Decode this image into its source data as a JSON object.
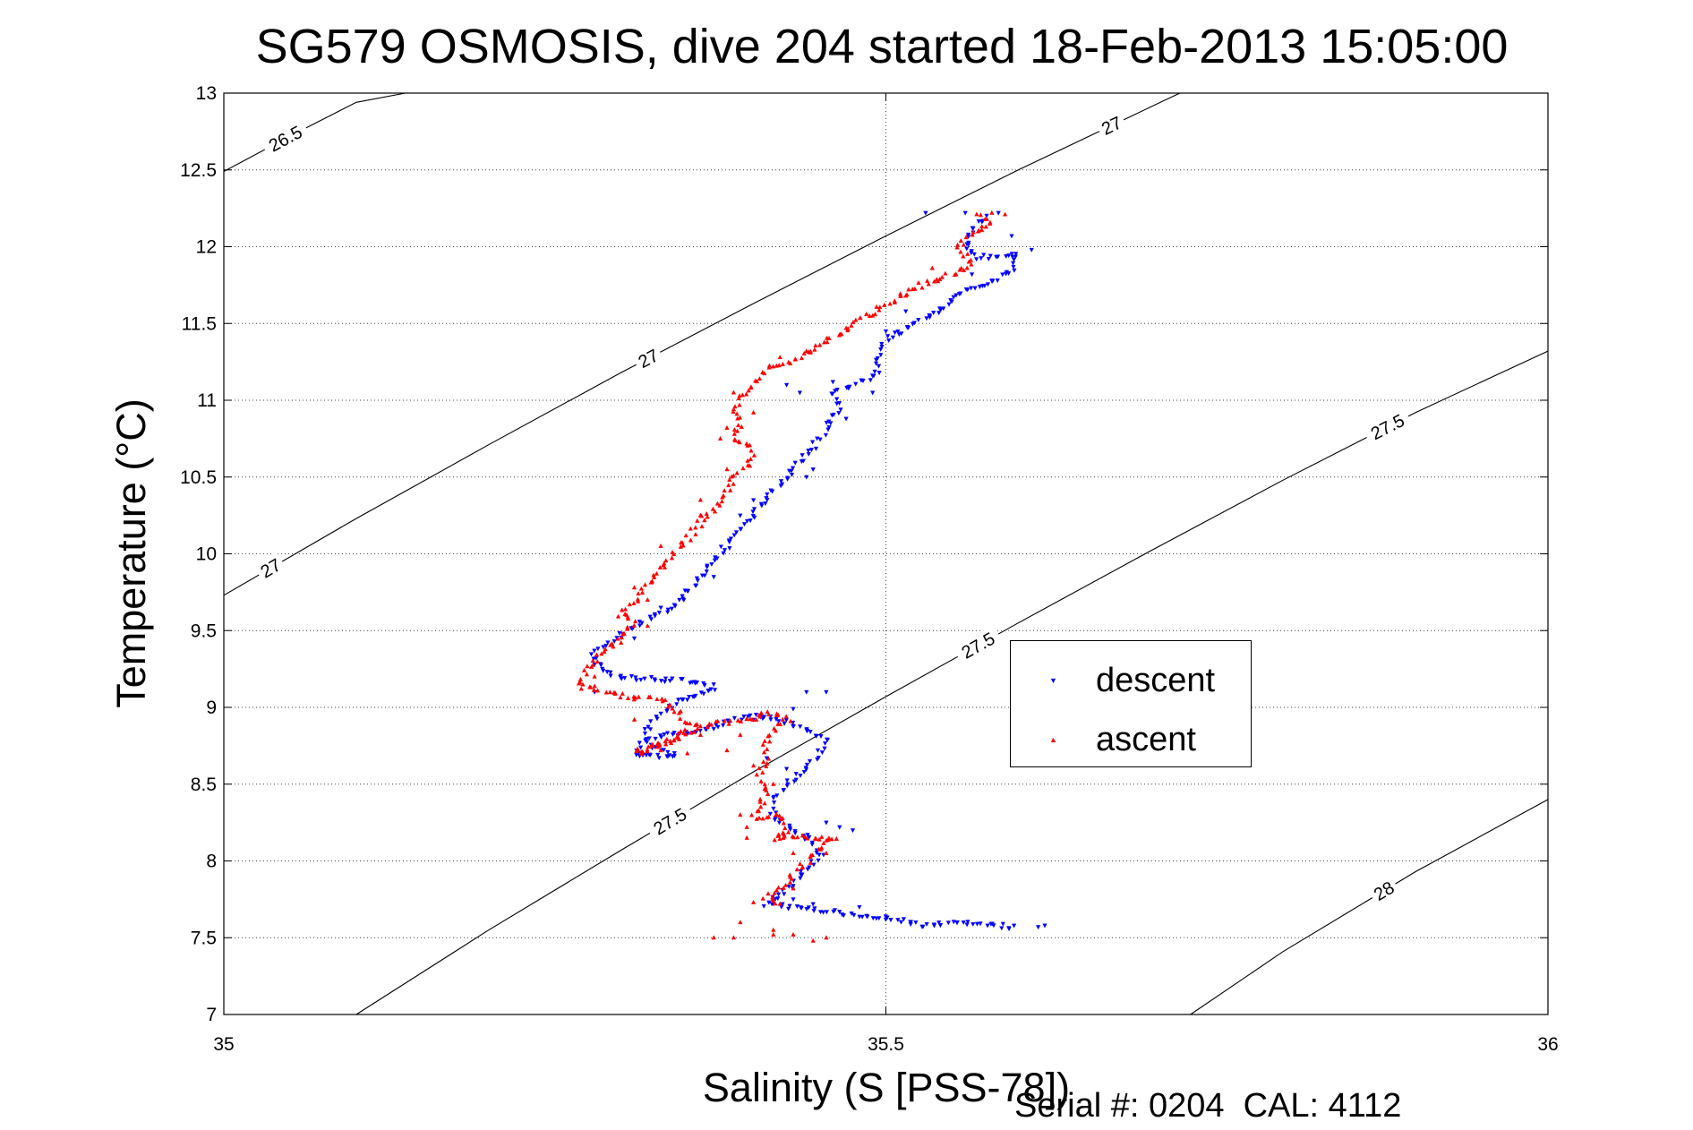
{
  "title": "SG579 OSMOSIS, dive 204 started 18-Feb-2013 15:05:00",
  "footer": "Serial #: 0204  CAL: 4112",
  "chart_data": {
    "type": "scatter",
    "title": "SG579 OSMOSIS, dive 204 started 18-Feb-2013 15:05:00",
    "xlabel": "Salinity (S [PSS-78])",
    "ylabel": "Temperature (°C)",
    "xlim": [
      35,
      36
    ],
    "ylim": [
      7,
      13
    ],
    "xticks": [
      35,
      35.5,
      36
    ],
    "xtick_labels": [
      "35",
      "35.5",
      "36"
    ],
    "yticks": [
      7,
      7.5,
      8,
      8.5,
      9,
      9.5,
      10,
      10.5,
      11,
      11.5,
      12,
      12.5,
      13
    ],
    "ytick_labels": [
      "7",
      "7.5",
      "8",
      "8.5",
      "9",
      "9.5",
      "10",
      "10.5",
      "11",
      "11.5",
      "12",
      "12.5",
      "13"
    ],
    "grid": "dotted",
    "legend": {
      "position": "center-right",
      "entries": [
        "descent",
        "ascent"
      ]
    },
    "colors": {
      "descent": "#0000ff",
      "ascent": "#ff0000",
      "contour": "#000000"
    },
    "density_contours": [
      {
        "label": "26.5",
        "points": [
          [
            35.0,
            12.49
          ],
          [
            35.05,
            12.72
          ],
          [
            35.1,
            12.94
          ],
          [
            35.137,
            13.0
          ]
        ]
      },
      {
        "label": "27",
        "points": [
          [
            35.0,
            9.73
          ],
          [
            35.1,
            10.23
          ],
          [
            35.2,
            10.71
          ],
          [
            35.3,
            11.18
          ],
          [
            35.4,
            11.63
          ],
          [
            35.5,
            12.07
          ],
          [
            35.6,
            12.5
          ],
          [
            35.7,
            12.91
          ],
          [
            35.722,
            13.0
          ]
        ]
      },
      {
        "label": "27.5",
        "points": [
          [
            35.1,
            7.0
          ],
          [
            35.2,
            7.55
          ],
          [
            35.3,
            8.07
          ],
          [
            35.4,
            8.58
          ],
          [
            35.5,
            9.07
          ],
          [
            35.6,
            9.55
          ],
          [
            35.7,
            10.02
          ],
          [
            35.8,
            10.48
          ],
          [
            35.9,
            10.92
          ],
          [
            36.0,
            11.32
          ]
        ]
      },
      {
        "label": "28",
        "points": [
          [
            35.73,
            7.0
          ],
          [
            35.8,
            7.41
          ],
          [
            35.9,
            7.93
          ],
          [
            36.0,
            8.4
          ]
        ]
      }
    ],
    "series": [
      {
        "name": "descent",
        "marker": "▼",
        "color": "#0000ff",
        "path": [
          [
            35.575,
            12.2
          ],
          [
            35.565,
            12.1
          ],
          [
            35.56,
            12.0
          ],
          [
            35.57,
            11.93
          ],
          [
            35.6,
            11.95
          ],
          [
            35.595,
            11.85
          ],
          [
            35.575,
            11.75
          ],
          [
            35.555,
            11.7
          ],
          [
            35.545,
            11.6
          ],
          [
            35.5,
            11.4
          ],
          [
            35.49,
            11.15
          ],
          [
            35.475,
            11.1
          ],
          [
            35.46,
            11.05
          ],
          [
            35.465,
            10.95
          ],
          [
            35.455,
            10.82
          ],
          [
            35.445,
            10.7
          ],
          [
            35.435,
            10.6
          ],
          [
            35.425,
            10.5
          ],
          [
            35.415,
            10.4
          ],
          [
            35.405,
            10.3
          ],
          [
            35.395,
            10.2
          ],
          [
            35.385,
            10.1
          ],
          [
            35.375,
            10.0
          ],
          [
            35.365,
            9.9
          ],
          [
            35.355,
            9.8
          ],
          [
            35.345,
            9.7
          ],
          [
            35.33,
            9.62
          ],
          [
            35.315,
            9.55
          ],
          [
            35.3,
            9.48
          ],
          [
            35.29,
            9.4
          ],
          [
            35.28,
            9.35
          ],
          [
            35.285,
            9.25
          ],
          [
            35.3,
            9.2
          ],
          [
            35.33,
            9.18
          ],
          [
            35.36,
            9.17
          ],
          [
            35.37,
            9.12
          ],
          [
            35.345,
            9.05
          ],
          [
            35.33,
            8.95
          ],
          [
            35.32,
            8.85
          ],
          [
            35.32,
            8.78
          ],
          [
            35.33,
            8.72
          ],
          [
            35.34,
            8.68
          ],
          [
            35.31,
            8.68
          ],
          [
            35.32,
            8.8
          ],
          [
            35.36,
            8.85
          ],
          [
            35.4,
            8.95
          ],
          [
            35.42,
            8.92
          ],
          [
            35.44,
            8.85
          ],
          [
            35.455,
            8.8
          ],
          [
            35.45,
            8.7
          ],
          [
            35.44,
            8.6
          ],
          [
            35.425,
            8.5
          ],
          [
            35.415,
            8.4
          ],
          [
            35.415,
            8.28
          ],
          [
            35.43,
            8.22
          ],
          [
            35.44,
            8.15
          ],
          [
            35.45,
            8.05
          ],
          [
            35.44,
            7.95
          ],
          [
            35.43,
            7.85
          ],
          [
            35.42,
            7.78
          ],
          [
            35.41,
            7.72
          ],
          [
            35.505,
            7.62
          ],
          [
            35.53,
            7.58
          ],
          [
            35.56,
            7.6
          ],
          [
            35.58,
            7.58
          ],
          [
            35.6,
            7.57
          ]
        ],
        "scatter": [
          [
            35.53,
            12.22
          ],
          [
            35.56,
            12.22
          ],
          [
            35.585,
            12.22
          ],
          [
            35.595,
            12.07
          ],
          [
            35.61,
            11.98
          ],
          [
            35.58,
            11.78
          ],
          [
            35.54,
            11.57
          ],
          [
            35.51,
            11.43
          ],
          [
            35.515,
            11.58
          ],
          [
            35.565,
            11.82
          ],
          [
            35.49,
            11.05
          ],
          [
            35.47,
            10.88
          ],
          [
            35.445,
            10.55
          ],
          [
            35.4,
            10.35
          ],
          [
            35.37,
            9.85
          ],
          [
            35.35,
            9.76
          ],
          [
            35.33,
            9.65
          ],
          [
            35.28,
            9.28
          ],
          [
            35.28,
            9.1
          ],
          [
            35.37,
            9.15
          ],
          [
            35.35,
            9.05
          ],
          [
            35.37,
            8.86
          ],
          [
            35.4,
            8.92
          ],
          [
            35.44,
            9.1
          ],
          [
            35.455,
            9.1
          ],
          [
            35.43,
            8.99
          ],
          [
            35.41,
            8.67
          ],
          [
            35.425,
            8.6
          ],
          [
            35.455,
            8.25
          ],
          [
            35.465,
            8.22
          ],
          [
            35.475,
            8.2
          ],
          [
            35.445,
            7.72
          ],
          [
            35.43,
            7.75
          ],
          [
            35.48,
            7.7
          ],
          [
            35.54,
            7.6
          ],
          [
            35.62,
            7.58
          ],
          [
            35.615,
            7.57
          ],
          [
            35.495,
            11.18
          ],
          [
            35.5,
            11.45
          ],
          [
            35.46,
            11.12
          ],
          [
            35.425,
            11.1
          ],
          [
            35.435,
            11.05
          ],
          [
            35.44,
            10.5
          ],
          [
            35.39,
            10.25
          ],
          [
            35.31,
            9.45
          ]
        ]
      },
      {
        "name": "ascent",
        "marker": "▲",
        "color": "#ff0000",
        "path": [
          [
            35.57,
            12.22
          ],
          [
            35.58,
            12.15
          ],
          [
            35.565,
            12.08
          ],
          [
            35.555,
            12.0
          ],
          [
            35.56,
            11.95
          ],
          [
            35.565,
            11.88
          ],
          [
            35.55,
            11.82
          ],
          [
            35.535,
            11.78
          ],
          [
            35.52,
            11.72
          ],
          [
            35.5,
            11.62
          ],
          [
            35.485,
            11.55
          ],
          [
            35.47,
            11.45
          ],
          [
            35.455,
            11.38
          ],
          [
            35.44,
            11.3
          ],
          [
            35.425,
            11.25
          ],
          [
            35.41,
            11.2
          ],
          [
            35.4,
            11.1
          ],
          [
            35.39,
            11.0
          ],
          [
            35.385,
            10.92
          ],
          [
            35.39,
            10.85
          ],
          [
            35.385,
            10.75
          ],
          [
            35.4,
            10.7
          ],
          [
            35.395,
            10.58
          ],
          [
            35.385,
            10.5
          ],
          [
            35.38,
            10.4
          ],
          [
            35.37,
            10.3
          ],
          [
            35.36,
            10.2
          ],
          [
            35.35,
            10.1
          ],
          [
            35.34,
            10.0
          ],
          [
            35.33,
            9.9
          ],
          [
            35.32,
            9.8
          ],
          [
            35.31,
            9.7
          ],
          [
            35.3,
            9.6
          ],
          [
            35.31,
            9.55
          ],
          [
            35.3,
            9.45
          ],
          [
            35.285,
            9.35
          ],
          [
            35.275,
            9.25
          ],
          [
            35.27,
            9.15
          ],
          [
            35.29,
            9.1
          ],
          [
            35.31,
            9.05
          ],
          [
            35.33,
            9.06
          ],
          [
            35.34,
            9.0
          ],
          [
            35.35,
            8.9
          ],
          [
            35.345,
            8.8
          ],
          [
            35.325,
            8.75
          ],
          [
            35.31,
            8.7
          ],
          [
            35.33,
            8.76
          ],
          [
            35.36,
            8.88
          ],
          [
            35.4,
            8.92
          ],
          [
            35.41,
            8.96
          ],
          [
            35.425,
            8.92
          ],
          [
            35.415,
            8.85
          ],
          [
            35.41,
            8.75
          ],
          [
            35.41,
            8.65
          ],
          [
            35.405,
            8.55
          ],
          [
            35.41,
            8.45
          ],
          [
            35.405,
            8.35
          ],
          [
            35.4,
            8.28
          ],
          [
            35.42,
            8.3
          ],
          [
            35.425,
            8.2
          ],
          [
            35.415,
            8.15
          ],
          [
            35.43,
            8.16
          ],
          [
            35.45,
            8.15
          ],
          [
            35.46,
            8.15
          ],
          [
            35.45,
            8.08
          ],
          [
            35.44,
            8.0
          ],
          [
            35.43,
            7.92
          ],
          [
            35.425,
            7.85
          ],
          [
            35.415,
            7.8
          ],
          [
            35.41,
            7.75
          ],
          [
            35.42,
            7.7
          ]
        ],
        "scatter": [
          [
            35.58,
            12.22
          ],
          [
            35.59,
            12.21
          ],
          [
            35.535,
            11.86
          ],
          [
            35.515,
            11.68
          ],
          [
            35.49,
            11.55
          ],
          [
            35.47,
            11.47
          ],
          [
            35.44,
            11.32
          ],
          [
            35.42,
            11.28
          ],
          [
            35.385,
            11.05
          ],
          [
            35.4,
            10.92
          ],
          [
            35.38,
            10.82
          ],
          [
            35.375,
            10.75
          ],
          [
            35.38,
            10.55
          ],
          [
            35.36,
            10.35
          ],
          [
            35.36,
            10.25
          ],
          [
            35.33,
            10.05
          ],
          [
            35.31,
            9.78
          ],
          [
            35.32,
            9.7
          ],
          [
            35.32,
            9.53
          ],
          [
            35.3,
            9.42
          ],
          [
            35.28,
            9.2
          ],
          [
            35.27,
            9.12
          ],
          [
            35.31,
            8.92
          ],
          [
            35.36,
            8.82
          ],
          [
            35.33,
            8.72
          ],
          [
            35.35,
            8.7
          ],
          [
            35.38,
            8.72
          ],
          [
            35.39,
            8.82
          ],
          [
            35.4,
            8.62
          ],
          [
            35.415,
            8.5
          ],
          [
            35.39,
            8.3
          ],
          [
            35.395,
            8.22
          ],
          [
            35.395,
            8.15
          ],
          [
            35.43,
            8.05
          ],
          [
            35.455,
            8.05
          ],
          [
            35.42,
            7.72
          ],
          [
            35.43,
            7.82
          ],
          [
            35.4,
            7.73
          ],
          [
            35.39,
            7.6
          ],
          [
            35.415,
            7.52
          ],
          [
            35.455,
            7.5
          ],
          [
            35.445,
            7.48
          ],
          [
            35.43,
            7.52
          ],
          [
            35.385,
            7.5
          ],
          [
            35.415,
            7.55
          ],
          [
            35.37,
            7.5
          ]
        ]
      }
    ]
  }
}
